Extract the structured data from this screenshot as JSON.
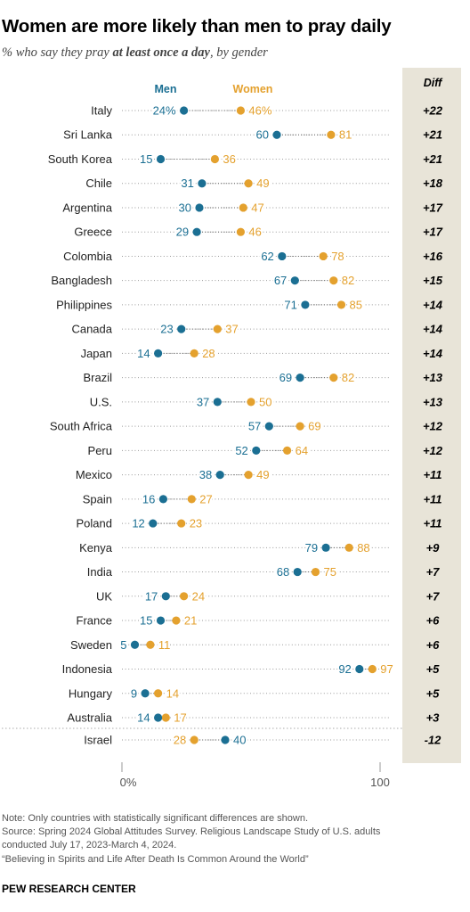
{
  "title": "Women are more likely than men to pray daily",
  "subtitle": {
    "pre": "% who say they pray ",
    "bold": "at least once a day",
    "post": ", by gender"
  },
  "colors": {
    "men": "#1b6f93",
    "women": "#e4a12e",
    "diff_bg": "#e8e4d8",
    "dot_line": "#9a9a9a"
  },
  "chart_data": {
    "type": "dot",
    "legend": {
      "men": "Men",
      "women": "Women",
      "diff": "Diff"
    },
    "axis": {
      "min": 0,
      "max": 100,
      "tick_labels": [
        "0%",
        "100"
      ]
    },
    "rows": [
      {
        "country": "Italy",
        "men": 24,
        "women": 46,
        "men_label": "24%",
        "women_label": "46%",
        "diff": "+22"
      },
      {
        "country": "Sri Lanka",
        "men": 60,
        "women": 81,
        "men_label": "60",
        "women_label": "81",
        "diff": "+21"
      },
      {
        "country": "South Korea",
        "men": 15,
        "women": 36,
        "men_label": "15",
        "women_label": "36",
        "diff": "+21"
      },
      {
        "country": "Chile",
        "men": 31,
        "women": 49,
        "men_label": "31",
        "women_label": "49",
        "diff": "+18"
      },
      {
        "country": "Argentina",
        "men": 30,
        "women": 47,
        "men_label": "30",
        "women_label": "47",
        "diff": "+17"
      },
      {
        "country": "Greece",
        "men": 29,
        "women": 46,
        "men_label": "29",
        "women_label": "46",
        "diff": "+17"
      },
      {
        "country": "Colombia",
        "men": 62,
        "women": 78,
        "men_label": "62",
        "women_label": "78",
        "diff": "+16"
      },
      {
        "country": "Bangladesh",
        "men": 67,
        "women": 82,
        "men_label": "67",
        "women_label": "82",
        "diff": "+15"
      },
      {
        "country": "Philippines",
        "men": 71,
        "women": 85,
        "men_label": "71",
        "women_label": "85",
        "diff": "+14"
      },
      {
        "country": "Canada",
        "men": 23,
        "women": 37,
        "men_label": "23",
        "women_label": "37",
        "diff": "+14"
      },
      {
        "country": "Japan",
        "men": 14,
        "women": 28,
        "men_label": "14",
        "women_label": "28",
        "diff": "+14"
      },
      {
        "country": "Brazil",
        "men": 69,
        "women": 82,
        "men_label": "69",
        "women_label": "82",
        "diff": "+13"
      },
      {
        "country": "U.S.",
        "men": 37,
        "women": 50,
        "men_label": "37",
        "women_label": "50",
        "diff": "+13"
      },
      {
        "country": "South Africa",
        "men": 57,
        "women": 69,
        "men_label": "57",
        "women_label": "69",
        "diff": "+12"
      },
      {
        "country": "Peru",
        "men": 52,
        "women": 64,
        "men_label": "52",
        "women_label": "64",
        "diff": "+12"
      },
      {
        "country": "Mexico",
        "men": 38,
        "women": 49,
        "men_label": "38",
        "women_label": "49",
        "diff": "+11"
      },
      {
        "country": "Spain",
        "men": 16,
        "women": 27,
        "men_label": "16",
        "women_label": "27",
        "diff": "+11"
      },
      {
        "country": "Poland",
        "men": 12,
        "women": 23,
        "men_label": "12",
        "women_label": "23",
        "diff": "+11"
      },
      {
        "country": "Kenya",
        "men": 79,
        "women": 88,
        "men_label": "79",
        "women_label": "88",
        "diff": "+9"
      },
      {
        "country": "India",
        "men": 68,
        "women": 75,
        "men_label": "68",
        "women_label": "75",
        "diff": "+7"
      },
      {
        "country": "UK",
        "men": 17,
        "women": 24,
        "men_label": "17",
        "women_label": "24",
        "diff": "+7"
      },
      {
        "country": "France",
        "men": 15,
        "women": 21,
        "men_label": "15",
        "women_label": "21",
        "diff": "+6"
      },
      {
        "country": "Sweden",
        "men": 5,
        "women": 11,
        "men_label": "5",
        "women_label": "11",
        "diff": "+6"
      },
      {
        "country": "Indonesia",
        "men": 92,
        "women": 97,
        "men_label": "92",
        "women_label": "97",
        "diff": "+5"
      },
      {
        "country": "Hungary",
        "men": 9,
        "women": 14,
        "men_label": "9",
        "women_label": "14",
        "diff": "+5"
      },
      {
        "country": "Australia",
        "men": 14,
        "women": 17,
        "men_label": "14",
        "women_label": "17",
        "diff": "+3"
      },
      {
        "country": "Israel",
        "men": 40,
        "women": 28,
        "men_label": "40",
        "women_label": "28",
        "diff": "-12"
      }
    ]
  },
  "notes": [
    "Note: Only countries with statistically significant differences are shown.",
    "Source: Spring 2024 Global Attitudes Survey. Religious Landscape Study of U.S. adults",
    "conducted July 17, 2023-March 4, 2024.",
    "“Believing in Spirits and Life After Death Is Common Around the World”"
  ],
  "footer": "PEW RESEARCH CENTER"
}
